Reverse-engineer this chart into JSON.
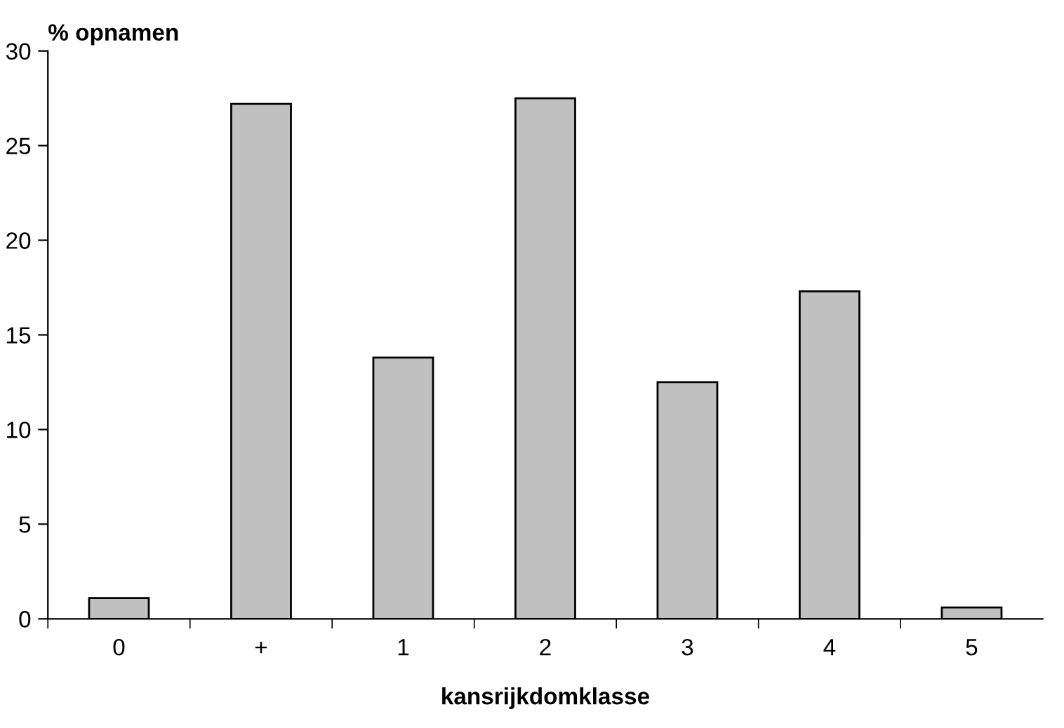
{
  "chart_data": {
    "type": "bar",
    "xlabel": "kansrijkdomklasse",
    "ylabel": "% opnamen",
    "categories": [
      "0",
      "+",
      "1",
      "2",
      "3",
      "4",
      "5"
    ],
    "values": [
      1.1,
      27.2,
      13.8,
      27.5,
      12.5,
      17.3,
      0.6
    ],
    "color": "#c0c0c0",
    "ylim": [
      0,
      30
    ],
    "yticks": [
      0,
      5,
      10,
      15,
      20,
      25,
      30
    ],
    "grid": false,
    "legend": false
  }
}
